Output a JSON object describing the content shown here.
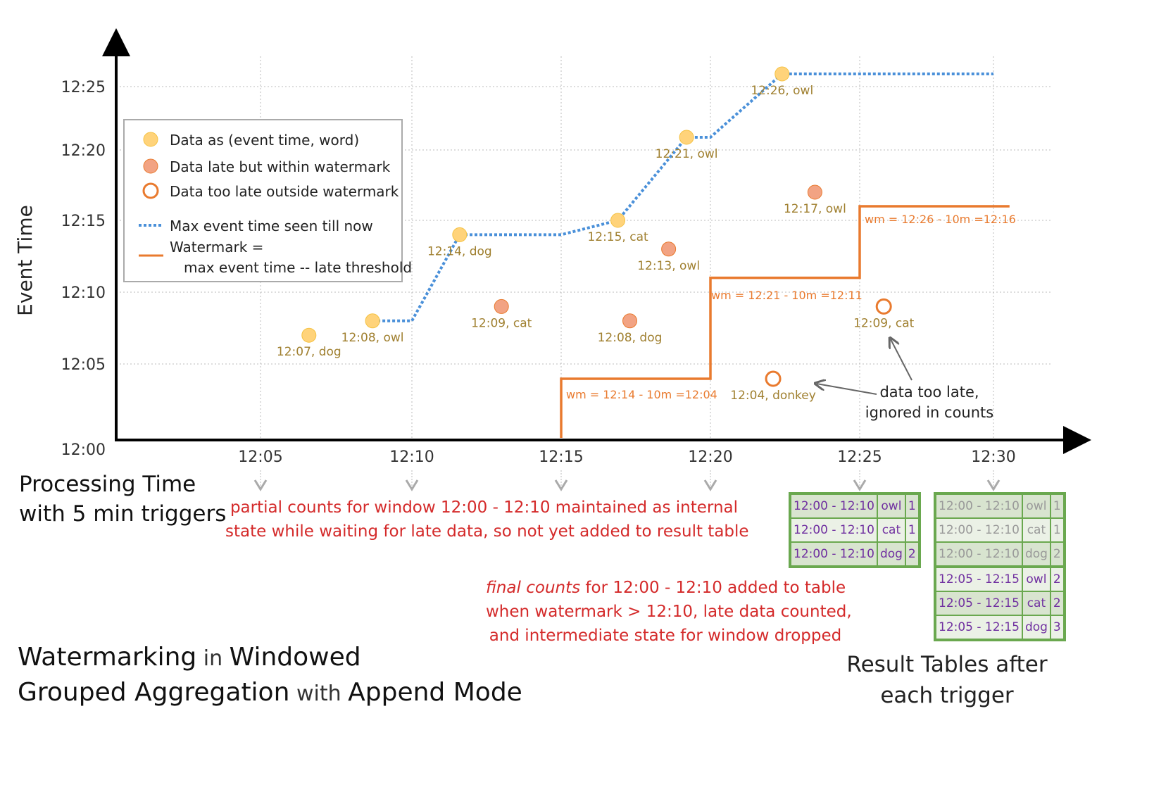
{
  "colors": {
    "on_time": "#ffd37a",
    "late": "#f2a383",
    "too_late": "#e97a2e",
    "max_line": "#4a90d9",
    "watermark": "#e97a2e",
    "table_border": "#6aa84f",
    "annotation": "#d42a2a",
    "label": "#a08030"
  },
  "axes": {
    "y_label": "Event Time",
    "x_label_line1": "Processing Time",
    "x_label_line2": "with 5 min triggers",
    "y_ticks": [
      {
        "label": "12:25",
        "min": 25
      },
      {
        "label": "12:20",
        "min": 20
      },
      {
        "label": "12:15",
        "min": 15
      },
      {
        "label": "12:10",
        "min": 10
      },
      {
        "label": "12:05",
        "min": 5
      },
      {
        "label": "12:00",
        "min": 0
      }
    ],
    "x_ticks": [
      {
        "label": "12:05",
        "min": 5
      },
      {
        "label": "12:10",
        "min": 10
      },
      {
        "label": "12:15",
        "min": 15
      },
      {
        "label": "12:20",
        "min": 20
      },
      {
        "label": "12:25",
        "min": 25
      },
      {
        "label": "12:30",
        "min": 30
      }
    ]
  },
  "legend": {
    "on_time": "Data as (event time, word)",
    "late": "Data late but within watermark",
    "too_late": "Data too late outside watermark",
    "max_line": "Max event time seen till now",
    "watermark_1": "Watermark =",
    "watermark_2": "max event time -- late threshold"
  },
  "points": [
    {
      "label": "12:07, dog",
      "proc": 6.6,
      "event": 7,
      "kind": "on_time"
    },
    {
      "label": "12:08, owl",
      "proc": 8.7,
      "event": 8,
      "kind": "on_time"
    },
    {
      "label": "12:14, dog",
      "proc": 11.6,
      "event": 14,
      "kind": "on_time"
    },
    {
      "label": "12:09, cat",
      "proc": 13.0,
      "event": 9,
      "kind": "late"
    },
    {
      "label": "12:15, cat",
      "proc": 16.9,
      "event": 15,
      "kind": "on_time"
    },
    {
      "label": "12:08, dog",
      "proc": 17.3,
      "event": 8,
      "kind": "late"
    },
    {
      "label": "12:13, owl",
      "proc": 18.6,
      "event": 13,
      "kind": "late"
    },
    {
      "label": "12:21, owl",
      "proc": 19.2,
      "event": 21,
      "kind": "on_time"
    },
    {
      "label": "12:26, owl",
      "proc": 22.4,
      "event": 26,
      "kind": "on_time"
    },
    {
      "label": "12:17, owl",
      "proc": 23.5,
      "event": 17,
      "kind": "late"
    },
    {
      "label": "12:04, donkey",
      "proc": 22.1,
      "event": 4,
      "kind": "too_late"
    },
    {
      "label": "12:09, cat",
      "proc": 25.9,
      "event": 9,
      "kind": "too_late"
    }
  ],
  "max_line": [
    [
      8.7,
      8
    ],
    [
      10,
      8
    ],
    [
      11.6,
      14
    ],
    [
      15,
      14
    ],
    [
      16.9,
      15
    ],
    [
      19.2,
      21
    ],
    [
      20,
      21
    ],
    [
      22.4,
      26
    ],
    [
      30,
      26
    ]
  ],
  "watermark_line": [
    [
      15,
      0
    ],
    [
      15,
      4
    ],
    [
      20,
      4
    ],
    [
      20,
      11
    ],
    [
      25,
      11
    ],
    [
      25,
      16
    ],
    [
      30.6,
      16
    ]
  ],
  "watermark_labels": [
    "wm = 12:14 - 10m =12:04",
    "wm = 12:21 - 10m =12:11",
    "wm = 12:26 - 10m =12:16"
  ],
  "too_late_note_1": "data too late,",
  "too_late_note_2": "ignored in counts",
  "partial_note_1": "partial counts for window 12:00 - 12:10 maintained as internal",
  "partial_note_2": "state while waiting for late data, so not yet added  to result table",
  "final_note_em": "final counts",
  "final_note_1": " for 12:00 - 12:10 added to table",
  "final_note_2": "when watermark > 12:10, late data counted,",
  "final_note_3": "and intermediate state for window dropped",
  "title": {
    "a": "Watermarking",
    "b": " in ",
    "c": "Windowed",
    "d": "Grouped Aggregation",
    "e": " with ",
    "f": "Append Mode"
  },
  "result_caption_1": "Result Tables after",
  "result_caption_2": "each trigger",
  "table_1225": [
    [
      "12:00 - 12:10",
      "owl",
      "1"
    ],
    [
      "12:00 - 12:10",
      "cat",
      "1"
    ],
    [
      "12:00 - 12:10",
      "dog",
      "2"
    ]
  ],
  "table_1230": [
    [
      "12:00 - 12:10",
      "owl",
      "1"
    ],
    [
      "12:00 - 12:10",
      "cat",
      "1"
    ],
    [
      "12:00 - 12:10",
      "dog",
      "2"
    ],
    [
      "12:05 - 12:15",
      "owl",
      "2"
    ],
    [
      "12:05 - 12:15",
      "cat",
      "2"
    ],
    [
      "12:05 - 12:15",
      "dog",
      "3"
    ]
  ]
}
